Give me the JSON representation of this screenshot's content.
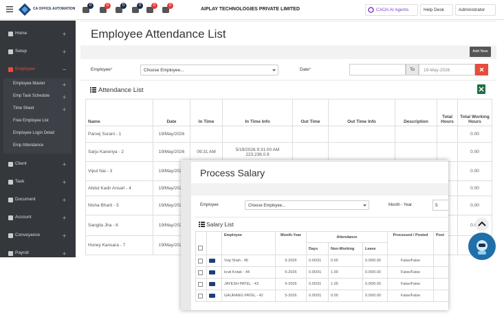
{
  "header": {
    "logo_text": "CA OFFICE AUTOMATION",
    "badges": [
      0,
      0,
      0,
      0,
      0,
      0
    ],
    "company": "AIPLAY TECHNOLOGIES PRIVATE LIMITED",
    "ai_agents": "CAOA AI Agents",
    "help_desk": "Help Desk",
    "user": "Administrator"
  },
  "sidebar": {
    "menu": [
      "Home",
      "Setup",
      "Employee",
      "Client",
      "Task",
      "Document",
      "Account",
      "Conveyance",
      "Payroll"
    ],
    "submenu": [
      "Employee Master",
      "Emp Task Schedule",
      "Time Sheet",
      "Free Employee List",
      "Employee Login Detail",
      "Emp Attendance"
    ]
  },
  "page": {
    "title": "Employee Attendance List",
    "add_new": "Add New",
    "employee_label": "Employee",
    "required_mark": "*",
    "employee_placeholder": "Choose Employee...",
    "date_label": "Date",
    "to": "To",
    "to_date": "19-May-2026"
  },
  "attendance": {
    "title": "Attendance List",
    "columns": [
      "Name",
      "Date",
      "In Time",
      "In Time Info",
      "Out Time",
      "Out Time Info",
      "Description",
      "Total Hours",
      "Total Working Hours"
    ],
    "rows": [
      [
        "Parvej Surani - 1",
        "19/May/2026",
        null,
        null,
        null,
        null,
        null,
        null,
        "0.00"
      ],
      [
        "Sarju Kaneriya - 2",
        "19/May/2026",
        "09:31 AM",
        "5/19/2026 9:31:00 AM 223.236.0.9",
        null,
        null,
        null,
        null,
        "0.00"
      ],
      [
        "Vipul Nai - 3",
        "19/May/2026",
        null,
        null,
        null,
        null,
        null,
        null,
        "0.00"
      ],
      [
        "Abdul Kadir Ansari - 4",
        "19/May/2026",
        null,
        null,
        null,
        null,
        null,
        null,
        "0.00"
      ],
      [
        "Nisha Bharti - 5",
        "19/May/2026",
        null,
        null,
        null,
        null,
        null,
        null,
        "0.00"
      ],
      [
        "Sangita Jha - 6",
        "19/May/2026",
        null,
        null,
        null,
        null,
        null,
        null,
        "0.00"
      ],
      [
        "Honey Kansara - 7",
        "19/May/2026",
        null,
        null,
        null,
        null,
        null,
        null,
        null
      ]
    ]
  },
  "salary_modal": {
    "title": "Process Salary",
    "employee_label": "Employee",
    "employee_placeholder": "Choose Employee...",
    "month_year_label": "Month - Year",
    "month_year_value": "5",
    "list_title": "Salary List",
    "columns": {
      "employee": "Employee",
      "month_year": "Month-Year",
      "attendance": "Attendance",
      "days": "Days",
      "non_working": "Non-Working",
      "leave": "Leave",
      "processed": "Processed / Posted",
      "posted": "Post"
    },
    "rows": [
      [
        "Vraj Shah - 45",
        "5-2026",
        "0.00/31",
        "0.00",
        "0.00/0.00",
        "False/False"
      ],
      [
        "kruti Kotak - 44",
        "5-2026",
        "0.00/31",
        "1.00",
        "0.00/0.00",
        "False/False"
      ],
      [
        "JAYESH PATEL - 43",
        "5-2026",
        "0.00/31",
        "1.00",
        "0.00/0.00",
        "False/False"
      ],
      [
        "GAURANG PATEL - 42",
        "5-2026",
        "0.00/31",
        "0.00",
        "0.00/0.00",
        "False/False"
      ]
    ]
  }
}
